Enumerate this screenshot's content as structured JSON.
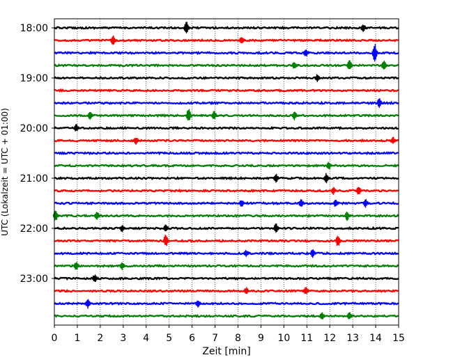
{
  "chart_data": {
    "type": "line",
    "title": "",
    "xlabel": "Zeit  [min]",
    "ylabel": "UTC (Lokalzeit = UTC + 01:00)",
    "xlim": [
      0,
      15
    ],
    "x_ticks": [
      "0",
      "1",
      "2",
      "3",
      "4",
      "5",
      "6",
      "7",
      "8",
      "9",
      "10",
      "11",
      "12",
      "13",
      "14",
      "15"
    ],
    "y_ticks": [
      "18:00",
      "19:00",
      "20:00",
      "21:00",
      "22:00",
      "23:00"
    ],
    "grid": "vertical dotted at each minute",
    "colors": [
      "#000000",
      "#ff0000",
      "#0000ff",
      "#008000"
    ],
    "trace_rows": [
      {
        "time": "18:00",
        "color": "#000000",
        "events": [
          {
            "x": 5.8,
            "amp": 1.0
          },
          {
            "x": 13.5,
            "amp": 0.4
          }
        ]
      },
      {
        "time": "18:15",
        "color": "#ff0000",
        "events": [
          {
            "x": 2.6,
            "amp": 0.6
          },
          {
            "x": 8.2,
            "amp": 0.3
          }
        ]
      },
      {
        "time": "18:30",
        "color": "#0000ff",
        "events": [
          {
            "x": 14.0,
            "amp": 1.5
          },
          {
            "x": 11.0,
            "amp": 0.3
          }
        ]
      },
      {
        "time": "18:45",
        "color": "#008000",
        "events": [
          {
            "x": 12.9,
            "amp": 0.6
          },
          {
            "x": 14.4,
            "amp": 0.7
          },
          {
            "x": 10.5,
            "amp": 0.3
          }
        ]
      },
      {
        "time": "19:00",
        "color": "#000000",
        "events": [
          {
            "x": 11.5,
            "amp": 0.3
          }
        ]
      },
      {
        "time": "19:15",
        "color": "#ff0000",
        "events": []
      },
      {
        "time": "19:30",
        "color": "#0000ff",
        "events": [
          {
            "x": 14.2,
            "amp": 0.5
          }
        ]
      },
      {
        "time": "19:45",
        "color": "#008000",
        "events": [
          {
            "x": 5.9,
            "amp": 1.0
          },
          {
            "x": 7.0,
            "amp": 0.4
          },
          {
            "x": 10.5,
            "amp": 0.4
          },
          {
            "x": 1.6,
            "amp": 0.3
          }
        ]
      },
      {
        "time": "20:00",
        "color": "#000000",
        "events": [
          {
            "x": 1.0,
            "amp": 0.3
          }
        ]
      },
      {
        "time": "20:15",
        "color": "#ff0000",
        "events": [
          {
            "x": 3.6,
            "amp": 0.3
          },
          {
            "x": 14.8,
            "amp": 0.3
          }
        ]
      },
      {
        "time": "20:30",
        "color": "#0000ff",
        "events": []
      },
      {
        "time": "20:45",
        "color": "#008000",
        "events": [
          {
            "x": 12.0,
            "amp": 0.3
          }
        ]
      },
      {
        "time": "21:00",
        "color": "#000000",
        "events": [
          {
            "x": 9.7,
            "amp": 0.4
          },
          {
            "x": 11.9,
            "amp": 0.6
          }
        ]
      },
      {
        "time": "21:15",
        "color": "#ff0000",
        "events": [
          {
            "x": 13.3,
            "amp": 0.4
          },
          {
            "x": 12.2,
            "amp": 0.3
          }
        ]
      },
      {
        "time": "21:30",
        "color": "#0000ff",
        "events": [
          {
            "x": 8.2,
            "amp": 0.4
          },
          {
            "x": 10.8,
            "amp": 0.4
          },
          {
            "x": 12.3,
            "amp": 0.4
          },
          {
            "x": 13.6,
            "amp": 0.4
          }
        ]
      },
      {
        "time": "21:45",
        "color": "#008000",
        "events": [
          {
            "x": 0.1,
            "amp": 0.7
          },
          {
            "x": 1.9,
            "amp": 0.5
          },
          {
            "x": 12.8,
            "amp": 0.5
          }
        ]
      },
      {
        "time": "22:00",
        "color": "#000000",
        "events": [
          {
            "x": 9.7,
            "amp": 0.5
          },
          {
            "x": 3.0,
            "amp": 0.3
          },
          {
            "x": 4.9,
            "amp": 0.3
          }
        ]
      },
      {
        "time": "22:15",
        "color": "#ff0000",
        "events": [
          {
            "x": 4.9,
            "amp": 0.8
          },
          {
            "x": 12.4,
            "amp": 0.7
          }
        ]
      },
      {
        "time": "22:30",
        "color": "#0000ff",
        "events": [
          {
            "x": 11.3,
            "amp": 0.4
          },
          {
            "x": 8.4,
            "amp": 0.3
          }
        ]
      },
      {
        "time": "22:45",
        "color": "#008000",
        "events": [
          {
            "x": 1.0,
            "amp": 0.4
          },
          {
            "x": 3.0,
            "amp": 0.4
          }
        ]
      },
      {
        "time": "23:00",
        "color": "#000000",
        "events": [
          {
            "x": 1.8,
            "amp": 0.4
          }
        ]
      },
      {
        "time": "23:15",
        "color": "#ff0000",
        "events": [
          {
            "x": 8.4,
            "amp": 0.3
          },
          {
            "x": 11.0,
            "amp": 0.3
          }
        ]
      },
      {
        "time": "23:30",
        "color": "#0000ff",
        "events": [
          {
            "x": 1.5,
            "amp": 0.5
          },
          {
            "x": 6.3,
            "amp": 0.3
          }
        ]
      },
      {
        "time": "23:45",
        "color": "#008000",
        "events": [
          {
            "x": 11.7,
            "amp": 0.4
          },
          {
            "x": 12.9,
            "amp": 0.4
          }
        ]
      }
    ]
  }
}
